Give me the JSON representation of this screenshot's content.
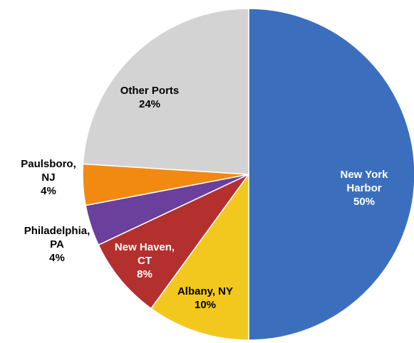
{
  "chart_data": {
    "type": "pie",
    "categories": [
      "New York\nHarbor",
      "Albany, NY",
      "New Haven,\nCT",
      "Philadelphia,\nPA",
      "Paulsboro,\nNJ",
      "Other Ports"
    ],
    "values": [
      50,
      10,
      8,
      4,
      4,
      24
    ],
    "value_labels": [
      "50%",
      "10%",
      "8%",
      "4%",
      "4%",
      "24%"
    ],
    "colors": [
      "#3b6fbe",
      "#f2c81e",
      "#b3302f",
      "#6b3f9c",
      "#f28a12",
      "#d3d3d3"
    ]
  }
}
